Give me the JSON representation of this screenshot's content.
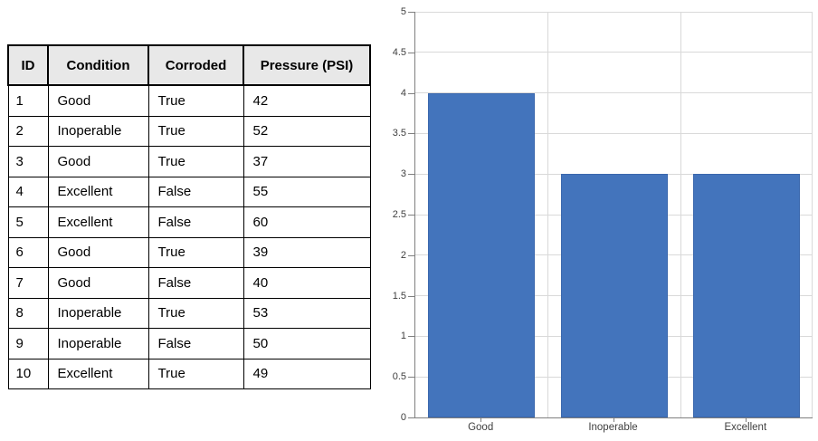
{
  "table": {
    "headers": [
      "ID",
      "Condition",
      "Corroded",
      "Pressure (PSI)"
    ],
    "rows": [
      [
        "1",
        "Good",
        "True",
        "42"
      ],
      [
        "2",
        "Inoperable",
        "True",
        "52"
      ],
      [
        "3",
        "Good",
        "True",
        "37"
      ],
      [
        "4",
        "Excellent",
        "False",
        "55"
      ],
      [
        "5",
        "Excellent",
        "False",
        "60"
      ],
      [
        "6",
        "Good",
        "True",
        "39"
      ],
      [
        "7",
        "Good",
        "False",
        "40"
      ],
      [
        "8",
        "Inoperable",
        "True",
        "53"
      ],
      [
        "9",
        "Inoperable",
        "False",
        "50"
      ],
      [
        "10",
        "Excellent",
        "True",
        "49"
      ]
    ],
    "header_bg": "#e8e8e8",
    "border_color": "#000000"
  },
  "chart_data": {
    "type": "bar",
    "categories": [
      "Good",
      "Inoperable",
      "Excellent"
    ],
    "values": [
      4,
      3,
      3
    ],
    "title": "",
    "xlabel": "",
    "ylabel": "",
    "ylim": [
      0,
      5
    ],
    "yticks": [
      {
        "value": 0,
        "label": "0"
      },
      {
        "value": 0.5,
        "label": "0.5"
      },
      {
        "value": 1,
        "label": "1"
      },
      {
        "value": 1.5,
        "label": "1.5"
      },
      {
        "value": 2,
        "label": "2"
      },
      {
        "value": 2.5,
        "label": "2.5"
      },
      {
        "value": 3,
        "label": "3"
      },
      {
        "value": 3.5,
        "label": "3.5"
      },
      {
        "value": 4,
        "label": "4"
      },
      {
        "value": 4.5,
        "label": "4.5"
      },
      {
        "value": 5,
        "label": "5"
      }
    ],
    "grid": true,
    "legend": "none",
    "bar_color": "#4374bc",
    "grid_color": "#d9d9d9",
    "axis_color": "#7f7f7f",
    "tick_label_color": "#3f3f3f"
  }
}
